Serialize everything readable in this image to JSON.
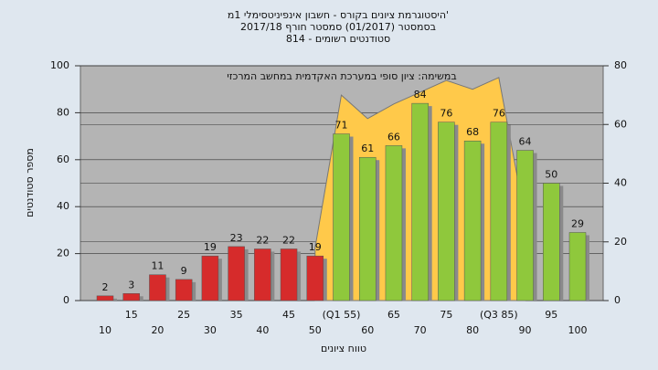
{
  "chart_data": {
    "type": "bar",
    "title_lines": [
      "היסטוגרמת ציונים בקורס - חשבון אינפיניטסימלי 1מ'",
      "בסמסטר  (01/2017)  סמסטר חורף  2017/18",
      "סטודנטים רשומים - 814"
    ],
    "annotation": "במשימה: ציון סופי במערכת האקדמית במחשב המרכזי",
    "xlabel": "טווח ציונים",
    "ylabel": "מספר סטודנטים",
    "categories": [
      "10",
      "15",
      "20",
      "25",
      "30",
      "35",
      "40",
      "45",
      "50",
      "(Q1 55)",
      "60",
      "65",
      "70",
      "75",
      "80",
      "(Q3 85)",
      "90",
      "95",
      "100"
    ],
    "values": [
      2,
      3,
      11,
      9,
      19,
      23,
      22,
      22,
      19,
      71,
      61,
      66,
      84,
      76,
      68,
      76,
      64,
      50,
      29
    ],
    "colors": [
      "#d62b2b",
      "#d62b2b",
      "#d62b2b",
      "#d62b2b",
      "#d62b2b",
      "#d62b2b",
      "#d62b2b",
      "#d62b2b",
      "#d62b2b",
      "#8fc83c",
      "#8fc83c",
      "#8fc83c",
      "#8fc83c",
      "#8fc83c",
      "#8fc83c",
      "#8fc83c",
      "#8fc83c",
      "#8fc83c",
      "#8fc83c"
    ],
    "ylim": [
      0,
      100
    ],
    "yticks": [
      0,
      20,
      40,
      60,
      80,
      100
    ],
    "y2lim": [
      0,
      80
    ],
    "y2ticks": [
      0,
      20,
      40,
      60,
      80
    ],
    "series": [
      {
        "color": "#ffc94a",
        "axis": "y2",
        "values": [
          null,
          null,
          null,
          null,
          null,
          null,
          null,
          null,
          18,
          70,
          62,
          67,
          71,
          75,
          72,
          76,
          28,
          null,
          null
        ]
      }
    ],
    "grid": true
  }
}
